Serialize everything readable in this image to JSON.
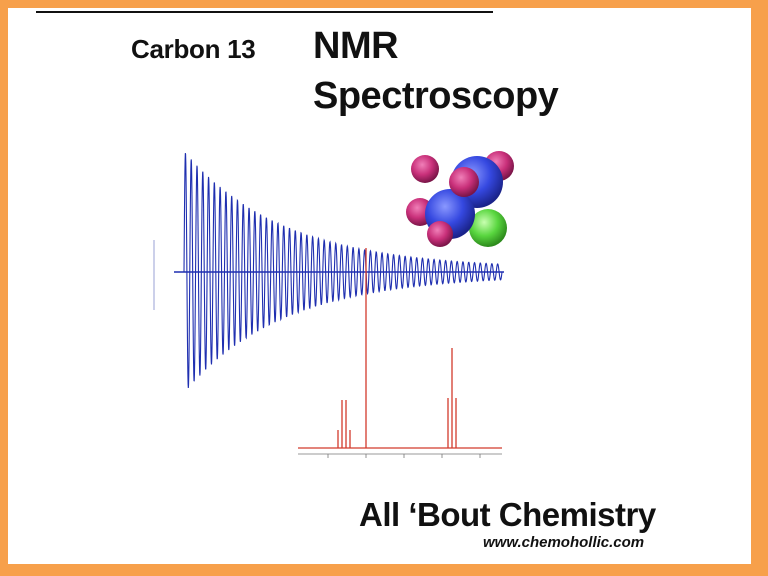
{
  "slide": {
    "title_prefix": "Carbon 13",
    "title_line1": "NMR",
    "title_line2": "Spectroscopy",
    "brand": "All ‘Bout Chemistry",
    "website": "www.chemohollic.com"
  },
  "graphics": {
    "fid": {
      "name": "free induction decay",
      "color": "#1f2fb0"
    },
    "spectrum": {
      "name": "NMR spectrum",
      "color": "#d23a2c"
    },
    "molecule": {
      "name": "space-filling molecular model",
      "colors": [
        "#3548e0",
        "#c9307a",
        "#59d63f"
      ]
    }
  },
  "colors": {
    "border": "#f7a04b",
    "background": "#ffffff",
    "text": "#111111"
  }
}
